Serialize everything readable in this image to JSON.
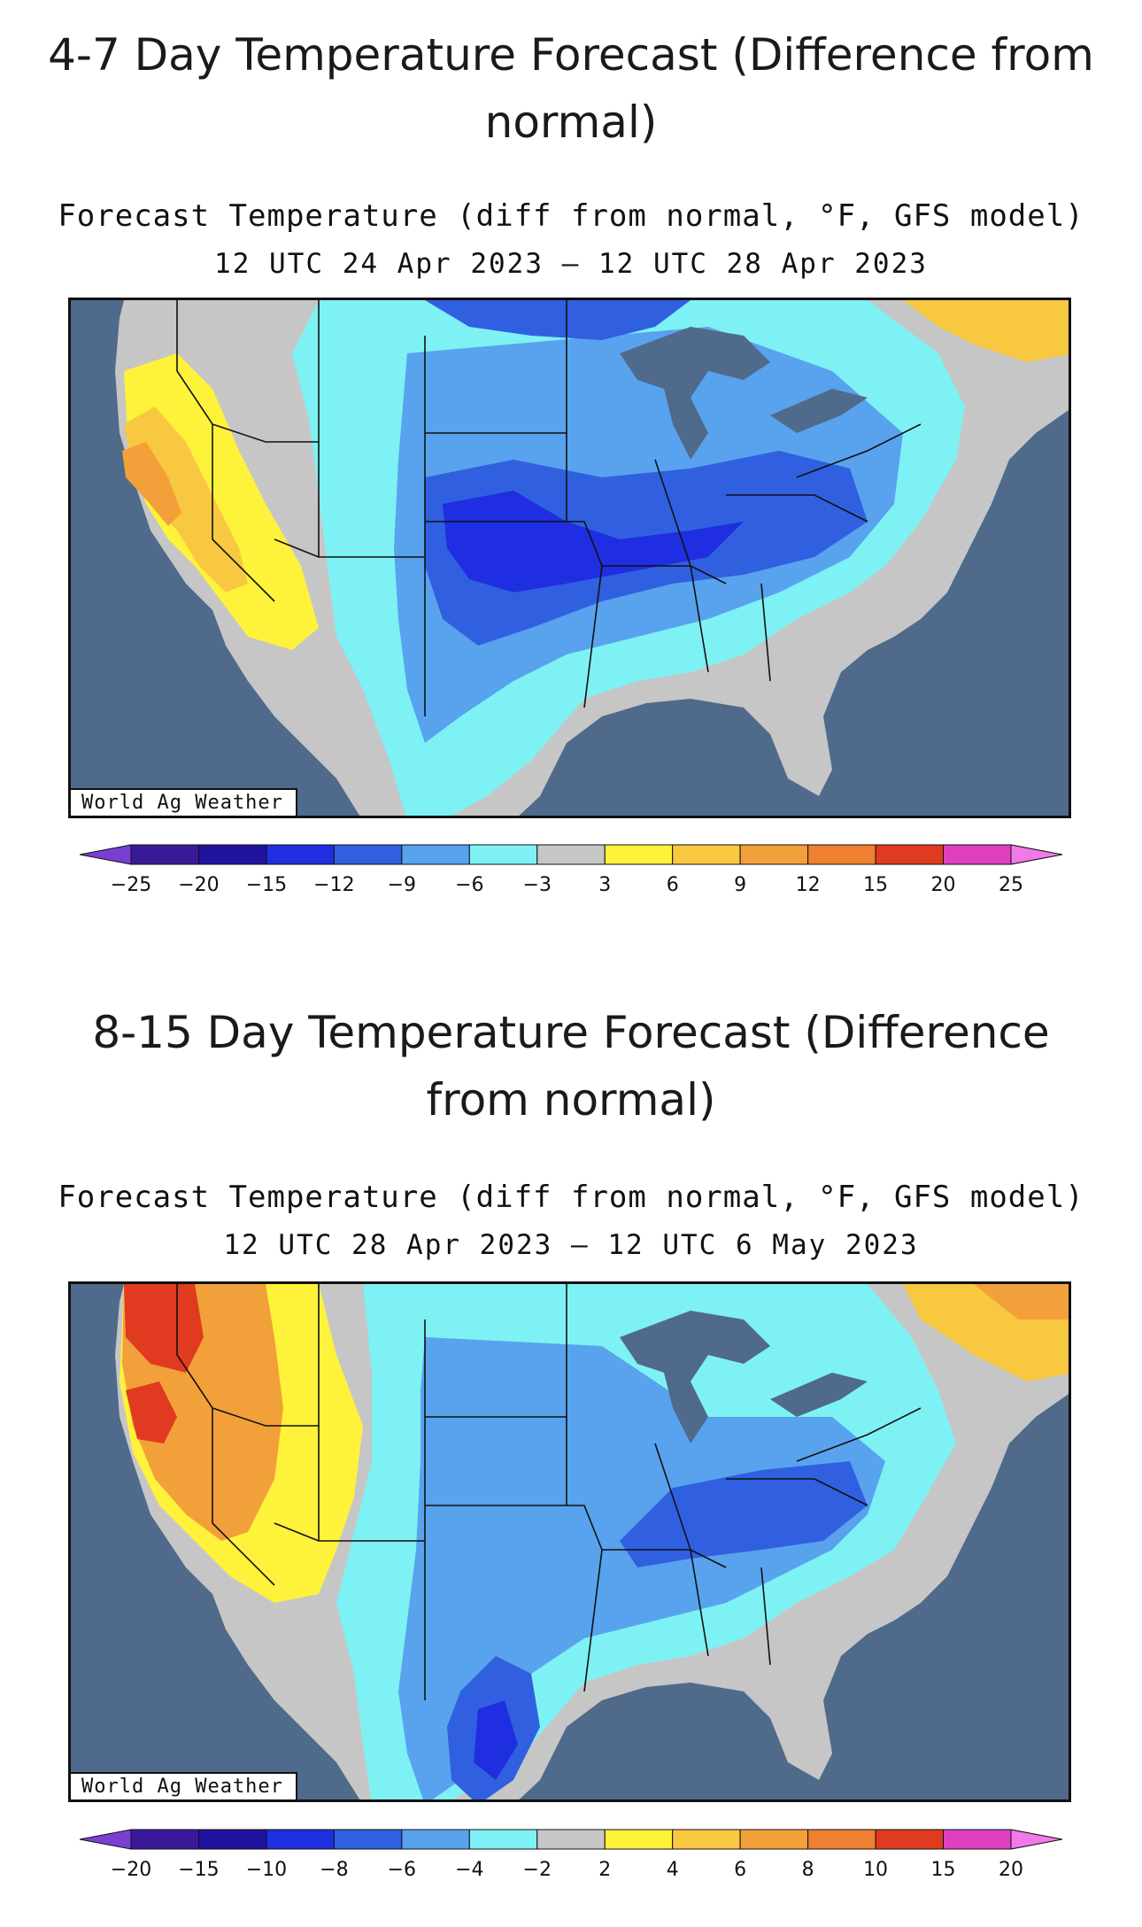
{
  "sections": [
    {
      "heading": "4-7 Day Temperature Forecast (Difference from normal)",
      "subtitle_line1": "Forecast Temperature (diff from normal, °F, GFS model)",
      "subtitle_line2": "12 UTC 24 Apr 2023 – 12 UTC 28 Apr 2023",
      "credit": "World Ag Weather",
      "legend": {
        "unit": "°F",
        "ticks": [
          "−25",
          "−20",
          "−15",
          "−12",
          "−9",
          "−6",
          "−3",
          "3",
          "6",
          "9",
          "12",
          "15",
          "20",
          "25"
        ],
        "colors": [
          "#7a3fd0",
          "#3a1a9a",
          "#20139e",
          "#1e2ee0",
          "#3060e0",
          "#58a2ee",
          "#7ef1f4",
          "#c6c6c6",
          "#fff23a",
          "#f8c840",
          "#f2a03a",
          "#ee8030",
          "#e03a20",
          "#e040c0",
          "#f07ae8"
        ]
      }
    },
    {
      "heading": "8-15 Day Temperature Forecast (Difference from normal)",
      "subtitle_line1": "Forecast Temperature (diff from normal, °F, GFS model)",
      "subtitle_line2": "12 UTC 28 Apr 2023 – 12 UTC 6 May 2023",
      "credit": "World Ag Weather",
      "legend": {
        "unit": "°F",
        "ticks": [
          "−20",
          "−15",
          "−10",
          "−8",
          "−6",
          "−4",
          "−2",
          "2",
          "4",
          "6",
          "8",
          "10",
          "15",
          "20"
        ],
        "colors": [
          "#7a3fd0",
          "#3a1a9a",
          "#20139e",
          "#1e2ee0",
          "#3060e0",
          "#58a2ee",
          "#7ef1f4",
          "#c6c6c6",
          "#fff23a",
          "#f8c840",
          "#f2a03a",
          "#ee8030",
          "#e03a20",
          "#e040c0",
          "#f07ae8"
        ]
      }
    }
  ],
  "map_colors": {
    "ocean": "#4f6a8a",
    "land_neutral": "#c6c6c6",
    "lake": "#4f6a8a",
    "border": "#111111"
  }
}
